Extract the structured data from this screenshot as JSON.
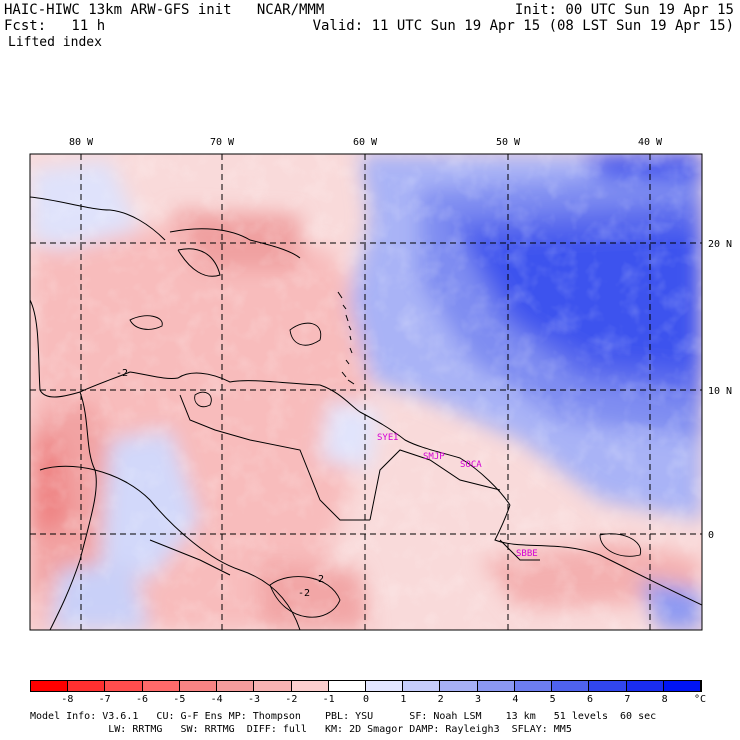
{
  "header": {
    "title_line": "HAIC-HIWC 13km ARW-GFS init   NCAR/MMM",
    "fcst_line": "Fcst:   11 h",
    "field": "Lifted index",
    "init": "Init: 00 UTC Sun 19 Apr 15",
    "valid": "Valid: 11 UTC Sun 19 Apr 15 (08 LST Sun 19 Apr 15)"
  },
  "map": {
    "lon_labels": [
      "80 W",
      "70 W",
      "60 W",
      "50 W",
      "40 W"
    ],
    "lat_labels": [
      "20 N",
      "10 N",
      "0"
    ],
    "contour_labels": [
      "-2",
      "-2",
      "-2"
    ],
    "sites": [
      "SYEI",
      "SMJP",
      "SOCA",
      "SBBE"
    ]
  },
  "colorbar": {
    "levels": [
      "-8",
      "-7",
      "-6",
      "-5",
      "-4",
      "-3",
      "-2",
      "-1",
      "0",
      "1",
      "2",
      "3",
      "4",
      "5",
      "6",
      "7",
      "8"
    ],
    "unit": "°C",
    "colors": [
      "#ff0000",
      "#ff3030",
      "#ff4d4d",
      "#ff6a6a",
      "#f88484",
      "#f59c9c",
      "#f8b2b2",
      "#fccece",
      "#ffffff",
      "#e3e6ff",
      "#c6cdfb",
      "#a7b1f6",
      "#8b98f2",
      "#6d7df0",
      "#4f62ee",
      "#3146ee",
      "#1a2df0",
      "#0014f5"
    ]
  },
  "footer": {
    "line1": "Model Info: V3.6.1   CU: G-F Ens MP: Thompson    PBL: YSU      SF: Noah LSM    13 km   51 levels  60 sec",
    "line2": "             LW: RRTMG   SW: RRTMG  DIFF: full   KM: 2D Smagor DAMP: Rayleigh3  SFLAY: MM5"
  }
}
